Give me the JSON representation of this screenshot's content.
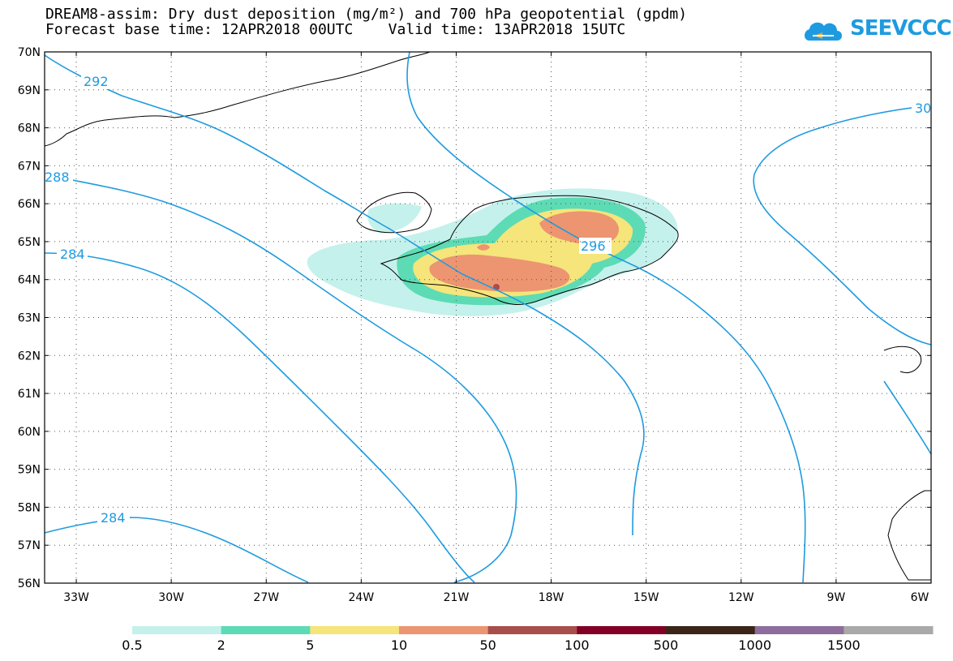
{
  "header": {
    "title_line1": "DREAM8-assim: Dry dust deposition (mg/m²) and 700 hPa geopotential (gpdm)",
    "title_line2": "Forecast base time: 12APR2018 00UTC    Valid time: 13APR2018 15UTC",
    "logo_text": "SEEVCCC"
  },
  "map": {
    "lat_labels": [
      "70N",
      "69N",
      "68N",
      "67N",
      "66N",
      "65N",
      "64N",
      "63N",
      "62N",
      "61N",
      "60N",
      "59N",
      "58N",
      "57N",
      "56N"
    ],
    "lon_labels": [
      "33W",
      "30W",
      "27W",
      "24W",
      "21W",
      "18W",
      "15W",
      "12W",
      "9W",
      "6W"
    ],
    "contour_labels": [
      "292",
      "288",
      "284",
      "284",
      "296",
      "30"
    ],
    "contour_color": "#1e9be0"
  },
  "legend": {
    "bins": [
      {
        "color": "#c4f1ec"
      },
      {
        "color": "#5ddbb4"
      },
      {
        "color": "#f5e57a"
      },
      {
        "color": "#ec9570"
      },
      {
        "color": "#a84e4b"
      },
      {
        "color": "#820025"
      },
      {
        "color": "#3b2518"
      },
      {
        "color": "#8d6d9c"
      },
      {
        "color": "#a9a9a9"
      }
    ],
    "tick_labels": [
      "0.5",
      "2",
      "5",
      "10",
      "50",
      "100",
      "500",
      "1000",
      "1500"
    ]
  }
}
